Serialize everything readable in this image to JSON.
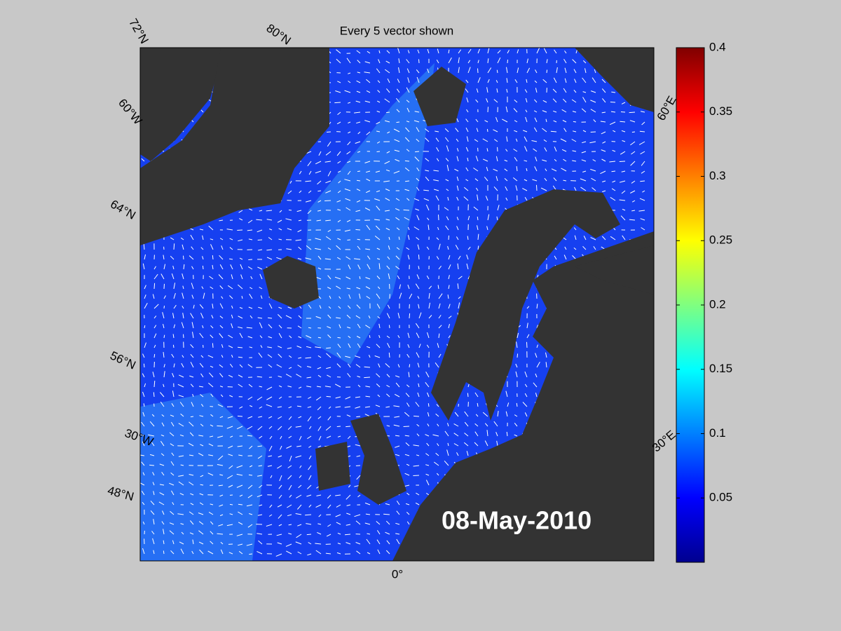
{
  "title": "Every 5 vector shown",
  "map": {
    "grid_labels": [
      "72°N",
      "80°N",
      "60°W",
      "64°N",
      "56°N",
      "30°W",
      "48°N",
      "0°",
      "60°E",
      "30°E"
    ],
    "date": "08-May-2010"
  },
  "colorbar": {
    "lim": [
      0,
      0.4
    ],
    "ticks": [
      0.05,
      0.1,
      0.15,
      0.2,
      0.25,
      0.3,
      0.35,
      0.4
    ]
  }
}
